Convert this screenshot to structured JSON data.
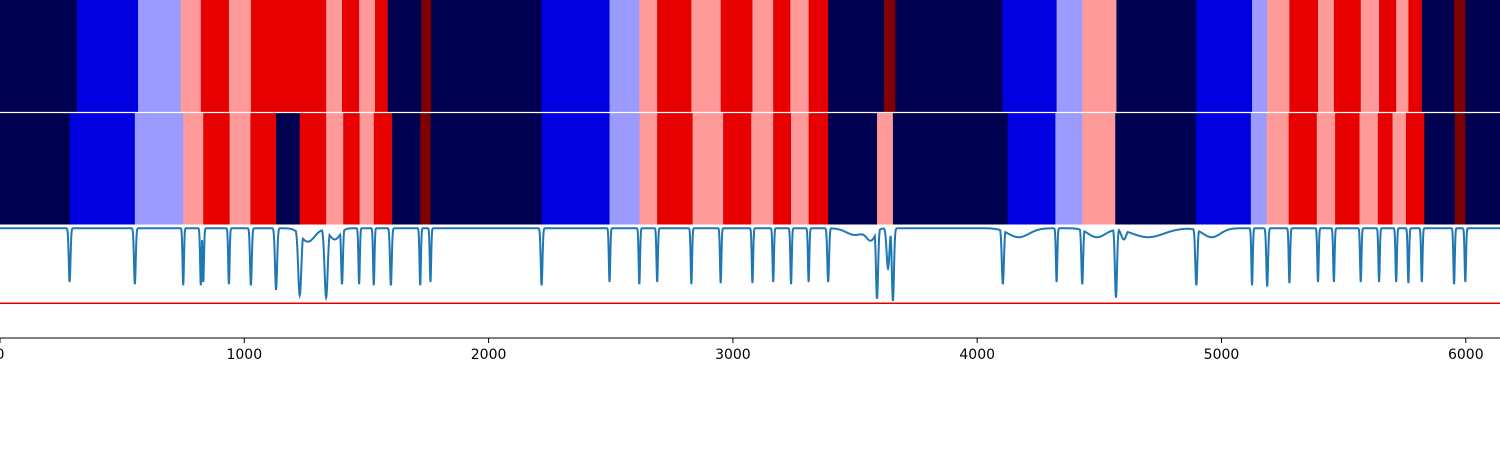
{
  "colors": {
    "background": "#ffffff",
    "navy": "#000050",
    "blue": "#0000e0",
    "lavender": "#9a9aff",
    "pink": "#ff9a9a",
    "red": "#e60000",
    "darkred": "#800000",
    "curve": "#1f77b4",
    "threshold": "#e00000",
    "separator": "#ffffff",
    "axis": "#000000"
  },
  "chart_data": {
    "type": "line",
    "title": "",
    "xlabel": "",
    "ylabel": "",
    "xlim": [
      0,
      6140
    ],
    "x_ticks": [
      0,
      1000,
      2000,
      3000,
      4000,
      5000,
      6000
    ],
    "x_tick_labels": [
      "0",
      "1000",
      "2000",
      "3000",
      "4000",
      "5000",
      "6000"
    ],
    "segment_rows": [
      {
        "name": "",
        "segments": [
          [
            0,
            315,
            "navy"
          ],
          [
            315,
            565,
            "blue"
          ],
          [
            565,
            740,
            "lavender"
          ],
          [
            740,
            822,
            "pink"
          ],
          [
            822,
            937,
            "red"
          ],
          [
            937,
            1027,
            "pink"
          ],
          [
            1027,
            1335,
            "red"
          ],
          [
            1335,
            1400,
            "pink"
          ],
          [
            1400,
            1470,
            "red"
          ],
          [
            1470,
            1535,
            "pink"
          ],
          [
            1535,
            1587,
            "red"
          ],
          [
            1587,
            1725,
            "navy"
          ],
          [
            1725,
            1765,
            "darkred"
          ],
          [
            1765,
            2216,
            "navy"
          ],
          [
            2216,
            2495,
            "blue"
          ],
          [
            2495,
            2617,
            "lavender"
          ],
          [
            2617,
            2690,
            "pink"
          ],
          [
            2690,
            2830,
            "red"
          ],
          [
            2830,
            2950,
            "pink"
          ],
          [
            2950,
            3080,
            "red"
          ],
          [
            3080,
            3165,
            "pink"
          ],
          [
            3165,
            3235,
            "red"
          ],
          [
            3235,
            3310,
            "pink"
          ],
          [
            3310,
            3390,
            "red"
          ],
          [
            3390,
            3618,
            "navy"
          ],
          [
            3618,
            3665,
            "darkred"
          ],
          [
            3665,
            4103,
            "navy"
          ],
          [
            4103,
            4325,
            "blue"
          ],
          [
            4325,
            4430,
            "lavender"
          ],
          [
            4430,
            4570,
            "pink"
          ],
          [
            4570,
            4897,
            "navy"
          ],
          [
            4897,
            5125,
            "blue"
          ],
          [
            5125,
            5187,
            "lavender"
          ],
          [
            5187,
            5278,
            "pink"
          ],
          [
            5278,
            5395,
            "red"
          ],
          [
            5395,
            5460,
            "pink"
          ],
          [
            5460,
            5570,
            "red"
          ],
          [
            5570,
            5645,
            "pink"
          ],
          [
            5645,
            5715,
            "red"
          ],
          [
            5715,
            5765,
            "pink"
          ],
          [
            5765,
            5820,
            "red"
          ],
          [
            5820,
            5952,
            "navy"
          ],
          [
            5952,
            5998,
            "darkred"
          ],
          [
            5998,
            6140,
            "navy"
          ]
        ]
      },
      {
        "name": "",
        "segments": [
          [
            0,
            285,
            "navy"
          ],
          [
            285,
            552,
            "blue"
          ],
          [
            552,
            750,
            "lavender"
          ],
          [
            750,
            832,
            "pink"
          ],
          [
            832,
            940,
            "red"
          ],
          [
            940,
            1025,
            "pink"
          ],
          [
            1025,
            1130,
            "red"
          ],
          [
            1130,
            1227,
            "navy"
          ],
          [
            1227,
            1335,
            "red"
          ],
          [
            1335,
            1405,
            "pink"
          ],
          [
            1405,
            1472,
            "red"
          ],
          [
            1472,
            1530,
            "pink"
          ],
          [
            1530,
            1605,
            "red"
          ],
          [
            1605,
            1720,
            "navy"
          ],
          [
            1720,
            1762,
            "darkred"
          ],
          [
            1762,
            2217,
            "navy"
          ],
          [
            2217,
            2495,
            "blue"
          ],
          [
            2495,
            2618,
            "lavender"
          ],
          [
            2618,
            2690,
            "pink"
          ],
          [
            2690,
            2835,
            "red"
          ],
          [
            2835,
            2960,
            "pink"
          ],
          [
            2960,
            3075,
            "red"
          ],
          [
            3075,
            3165,
            "pink"
          ],
          [
            3165,
            3238,
            "red"
          ],
          [
            3238,
            3310,
            "pink"
          ],
          [
            3310,
            3390,
            "red"
          ],
          [
            3390,
            3590,
            "navy"
          ],
          [
            3590,
            3655,
            "pink"
          ],
          [
            3655,
            4125,
            "navy"
          ],
          [
            4125,
            4320,
            "blue"
          ],
          [
            4320,
            4430,
            "lavender"
          ],
          [
            4430,
            4565,
            "pink"
          ],
          [
            4565,
            4895,
            "navy"
          ],
          [
            4895,
            5120,
            "blue"
          ],
          [
            5120,
            5185,
            "lavender"
          ],
          [
            5185,
            5275,
            "pink"
          ],
          [
            5275,
            5390,
            "red"
          ],
          [
            5390,
            5465,
            "pink"
          ],
          [
            5465,
            5565,
            "red"
          ],
          [
            5565,
            5640,
            "pink"
          ],
          [
            5640,
            5700,
            "red"
          ],
          [
            5700,
            5755,
            "pink"
          ],
          [
            5755,
            5830,
            "red"
          ],
          [
            5830,
            5955,
            "navy"
          ],
          [
            5955,
            5998,
            "darkred"
          ],
          [
            5998,
            6140,
            "navy"
          ]
        ]
      }
    ],
    "line_series": {
      "name": "",
      "ylim": [
        0,
        1
      ],
      "baseline": 0.98,
      "threshold": 0.31,
      "dips": [
        [
          285,
          0.5,
          5
        ],
        [
          552,
          0.48,
          5
        ],
        [
          750,
          0.47,
          4
        ],
        [
          822,
          0.47,
          4
        ],
        [
          832,
          0.5,
          4
        ],
        [
          937,
          0.48,
          4
        ],
        [
          1027,
          0.47,
          5
        ],
        [
          1130,
          0.43,
          6
        ],
        [
          1227,
          0.38,
          9
        ],
        [
          1335,
          0.36,
          9
        ],
        [
          1400,
          0.48,
          5
        ],
        [
          1470,
          0.48,
          4
        ],
        [
          1530,
          0.47,
          4
        ],
        [
          1600,
          0.47,
          5
        ],
        [
          1720,
          0.47,
          4
        ],
        [
          1762,
          0.5,
          4
        ],
        [
          2217,
          0.47,
          5
        ],
        [
          2495,
          0.5,
          4
        ],
        [
          2617,
          0.48,
          4
        ],
        [
          2690,
          0.5,
          4
        ],
        [
          2830,
          0.48,
          4
        ],
        [
          2950,
          0.49,
          4
        ],
        [
          3080,
          0.49,
          4
        ],
        [
          3165,
          0.5,
          4
        ],
        [
          3238,
          0.48,
          4
        ],
        [
          3310,
          0.5,
          4
        ],
        [
          3390,
          0.5,
          5
        ],
        [
          3590,
          0.35,
          6
        ],
        [
          3635,
          0.62,
          8
        ],
        [
          3655,
          0.33,
          6
        ],
        [
          4105,
          0.48,
          6
        ],
        [
          4325,
          0.5,
          4
        ],
        [
          4430,
          0.48,
          5
        ],
        [
          4568,
          0.36,
          6
        ],
        [
          4600,
          0.88,
          15
        ],
        [
          4897,
          0.47,
          6
        ],
        [
          5125,
          0.47,
          4
        ],
        [
          5187,
          0.46,
          5
        ],
        [
          5278,
          0.49,
          4
        ],
        [
          5395,
          0.5,
          4
        ],
        [
          5460,
          0.5,
          4
        ],
        [
          5570,
          0.5,
          4
        ],
        [
          5645,
          0.5,
          4
        ],
        [
          5715,
          0.5,
          4
        ],
        [
          5765,
          0.49,
          4
        ],
        [
          5820,
          0.5,
          4
        ],
        [
          5952,
          0.48,
          4
        ],
        [
          5998,
          0.5,
          4
        ]
      ],
      "bumps": [
        [
          1260,
          0.86,
          40
        ],
        [
          1370,
          0.88,
          30
        ],
        [
          3500,
          0.92,
          50
        ],
        [
          3565,
          0.88,
          25
        ],
        [
          4170,
          0.9,
          60
        ],
        [
          4490,
          0.9,
          50
        ],
        [
          4700,
          0.9,
          90
        ],
        [
          4960,
          0.9,
          50
        ]
      ]
    }
  }
}
